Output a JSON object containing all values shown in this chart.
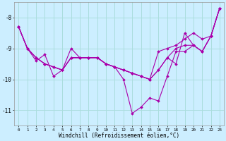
{
  "background_color": "#cceeff",
  "grid_color": "#aadddd",
  "line_color": "#aa00aa",
  "marker_color": "#aa00aa",
  "xlabel": "Windchill (Refroidissement éolien,°C)",
  "ylim": [
    -11.5,
    -7.5
  ],
  "xlim": [
    -0.5,
    23.5
  ],
  "xticks": [
    0,
    1,
    2,
    3,
    4,
    5,
    6,
    7,
    8,
    9,
    10,
    11,
    12,
    13,
    14,
    15,
    16,
    17,
    18,
    19,
    20,
    21,
    22,
    23
  ],
  "yticks": [
    -11,
    -10,
    -9,
    -8
  ],
  "series": [
    [
      -8.3,
      -9.0,
      -9.3,
      -9.5,
      -9.6,
      -9.7,
      -9.3,
      -9.3,
      -9.3,
      -9.3,
      -9.5,
      -9.6,
      -10.0,
      -11.1,
      -10.9,
      -10.6,
      -10.7,
      -9.9,
      -9.1,
      -9.1,
      -8.9,
      -9.1,
      -8.6,
      -7.7
    ],
    [
      -8.3,
      -9.0,
      -9.3,
      -9.5,
      -9.6,
      -9.7,
      -9.3,
      -9.3,
      -9.3,
      -9.3,
      -9.5,
      -9.6,
      -9.7,
      -9.8,
      -9.9,
      -10.0,
      -9.7,
      -9.3,
      -9.0,
      -8.9,
      -8.9,
      -9.1,
      -8.6,
      -7.7
    ],
    [
      -8.3,
      -9.0,
      -9.3,
      -9.5,
      -9.6,
      -9.7,
      -9.3,
      -9.3,
      -9.3,
      -9.3,
      -9.5,
      -9.6,
      -9.7,
      -9.8,
      -9.9,
      -10.0,
      -9.1,
      -9.0,
      -8.9,
      -8.7,
      -8.5,
      -8.7,
      -8.6,
      -7.7
    ],
    [
      -8.3,
      -9.0,
      -9.4,
      -9.2,
      -9.9,
      -9.7,
      -9.0,
      -9.3,
      -9.3,
      -9.3,
      -9.5,
      -9.6,
      -9.7,
      -9.8,
      -9.9,
      -10.0,
      -9.7,
      -9.3,
      -9.5,
      -8.5,
      -8.9,
      -9.1,
      -8.6,
      -7.7
    ]
  ]
}
